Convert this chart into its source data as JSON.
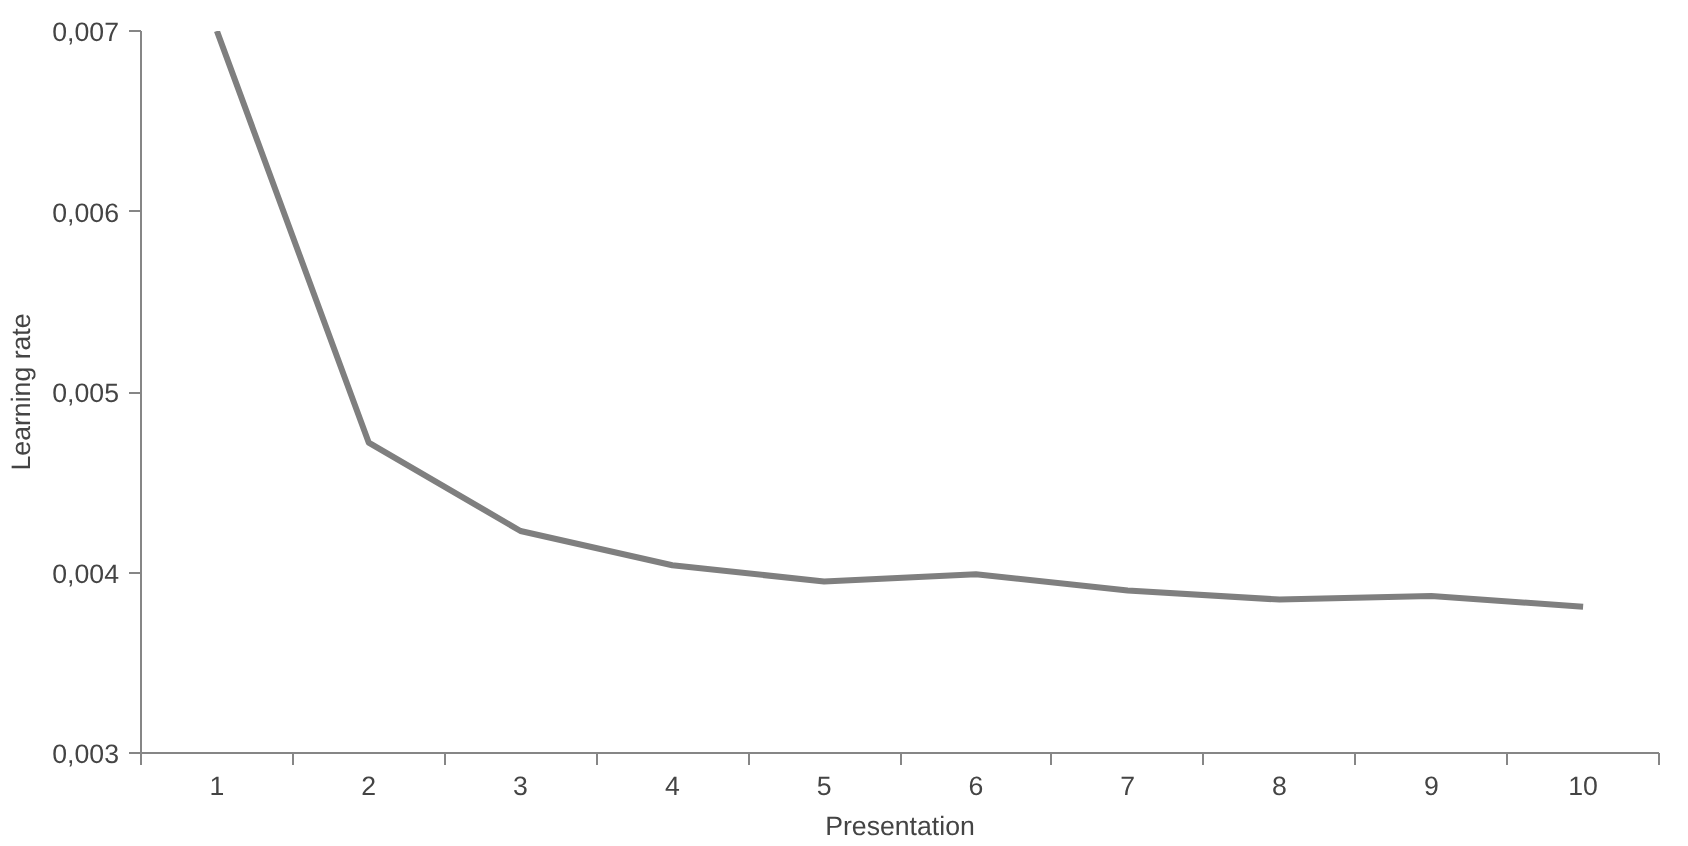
{
  "chart_data": {
    "type": "line",
    "xlabel": "Presentation",
    "ylabel": "Learning rate",
    "categories": [
      "1",
      "2",
      "3",
      "4",
      "5",
      "6",
      "7",
      "8",
      "9",
      "10"
    ],
    "series": [
      {
        "color": "#7f7f7f",
        "values": [
          0.007,
          0.00472,
          0.00423,
          0.00404,
          0.00395,
          0.00399,
          0.0039,
          0.00385,
          0.00387,
          0.00381
        ]
      }
    ],
    "ylim": [
      0.003,
      0.007
    ],
    "yticks": [
      {
        "value": 0.003,
        "label": "0,003"
      },
      {
        "value": 0.004,
        "label": "0,004"
      },
      {
        "value": 0.005,
        "label": "0,005"
      },
      {
        "value": 0.006,
        "label": "0,006"
      },
      {
        "value": 0.007,
        "label": "0,007"
      }
    ],
    "grid": false,
    "marker": "none",
    "line_style": "solid"
  }
}
